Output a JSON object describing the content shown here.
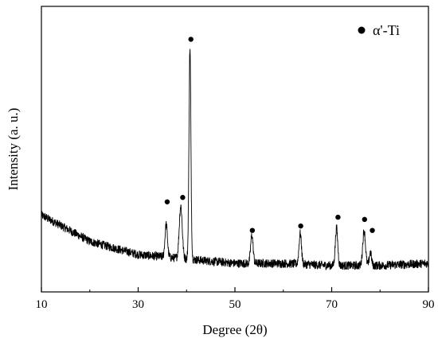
{
  "chart_data": {
    "type": "line",
    "title": "",
    "xlabel": "Degree (2θ)",
    "ylabel": "Intensity (a. u.)",
    "xlim": [
      10,
      90
    ],
    "xticks": [
      10,
      30,
      50,
      70,
      90
    ],
    "xtick_labels": [
      "10",
      "30",
      "50",
      "70",
      "90"
    ],
    "minor_xticks": [
      20,
      40,
      60,
      80
    ],
    "y_ticks_shown": false,
    "grid": false,
    "legend": {
      "marker": "filled-circle",
      "label": "α'-Ti",
      "placement": "top-right"
    },
    "series": [
      {
        "name": "α'-Ti",
        "color": "#000000",
        "baseline": [
          [
            10,
            0.25
          ],
          [
            20,
            0.13
          ],
          [
            30,
            0.07
          ],
          [
            40,
            0.05
          ],
          [
            50,
            0.03
          ],
          [
            60,
            0.03
          ],
          [
            70,
            0.02
          ],
          [
            80,
            0.02
          ],
          [
            90,
            0.03
          ]
        ],
        "peaks": [
          {
            "x": 35.8,
            "height": 0.15,
            "width": 0.45
          },
          {
            "x": 38.8,
            "height": 0.24,
            "width": 0.55
          },
          {
            "x": 40.7,
            "height": 0.96,
            "width": 0.35
          },
          {
            "x": 53.5,
            "height": 0.13,
            "width": 0.45
          },
          {
            "x": 63.5,
            "height": 0.14,
            "width": 0.45
          },
          {
            "x": 71.0,
            "height": 0.17,
            "width": 0.45
          },
          {
            "x": 76.7,
            "height": 0.16,
            "width": 0.5
          },
          {
            "x": 78.0,
            "height": 0.06,
            "width": 0.4
          }
        ],
        "noise": 0.02
      }
    ],
    "peak_markers": [
      {
        "x": 36.0,
        "y": 0.31
      },
      {
        "x": 39.2,
        "y": 0.33
      },
      {
        "x": 40.9,
        "y": 1.05
      },
      {
        "x": 53.6,
        "y": 0.18
      },
      {
        "x": 63.6,
        "y": 0.2
      },
      {
        "x": 71.3,
        "y": 0.24
      },
      {
        "x": 76.8,
        "y": 0.23
      },
      {
        "x": 78.4,
        "y": 0.18
      }
    ],
    "ylim": [
      -0.1,
      1.2
    ]
  }
}
